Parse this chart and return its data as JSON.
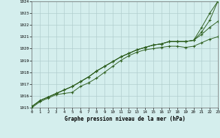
{
  "title": "Graphe pression niveau de la mer (hPa)",
  "bg_color": "#d4eeed",
  "grid_color": "#b0cccc",
  "line_color": "#2d5e1e",
  "xlim": [
    0,
    23
  ],
  "ylim": [
    1015.0,
    1024.0
  ],
  "xticks": [
    0,
    1,
    2,
    3,
    4,
    5,
    6,
    7,
    8,
    9,
    10,
    11,
    12,
    13,
    14,
    15,
    16,
    17,
    18,
    19,
    20,
    21,
    22,
    23
  ],
  "yticks": [
    1015,
    1016,
    1017,
    1018,
    1019,
    1020,
    1021,
    1022,
    1023,
    1024
  ],
  "series": [
    [
      1015.0,
      1015.5,
      1015.8,
      1016.1,
      1016.2,
      1016.3,
      1016.8,
      1017.1,
      1017.5,
      1018.0,
      1018.5,
      1019.0,
      1019.4,
      1019.7,
      1019.9,
      1020.0,
      1020.1,
      1020.2,
      1020.2,
      1020.1,
      1020.2,
      1020.5,
      1020.8,
      1021.0
    ],
    [
      1015.1,
      1015.6,
      1015.9,
      1016.2,
      1016.5,
      1016.8,
      1017.2,
      1017.6,
      1018.1,
      1018.5,
      1018.9,
      1019.3,
      1019.6,
      1019.9,
      1020.1,
      1020.3,
      1020.4,
      1020.6,
      1020.6,
      1020.6,
      1020.7,
      1021.2,
      1021.8,
      1022.3
    ],
    [
      1015.1,
      1015.6,
      1015.9,
      1016.2,
      1016.5,
      1016.8,
      1017.2,
      1017.6,
      1018.1,
      1018.5,
      1018.9,
      1019.3,
      1019.6,
      1019.9,
      1020.1,
      1020.3,
      1020.4,
      1020.6,
      1020.6,
      1020.6,
      1020.7,
      1021.4,
      1022.4,
      1024.0
    ],
    [
      1015.1,
      1015.6,
      1015.9,
      1016.2,
      1016.5,
      1016.8,
      1017.2,
      1017.6,
      1018.1,
      1018.5,
      1018.9,
      1019.3,
      1019.6,
      1019.9,
      1020.1,
      1020.3,
      1020.4,
      1020.6,
      1020.6,
      1020.6,
      1020.7,
      1021.8,
      1023.0,
      1024.0
    ]
  ]
}
